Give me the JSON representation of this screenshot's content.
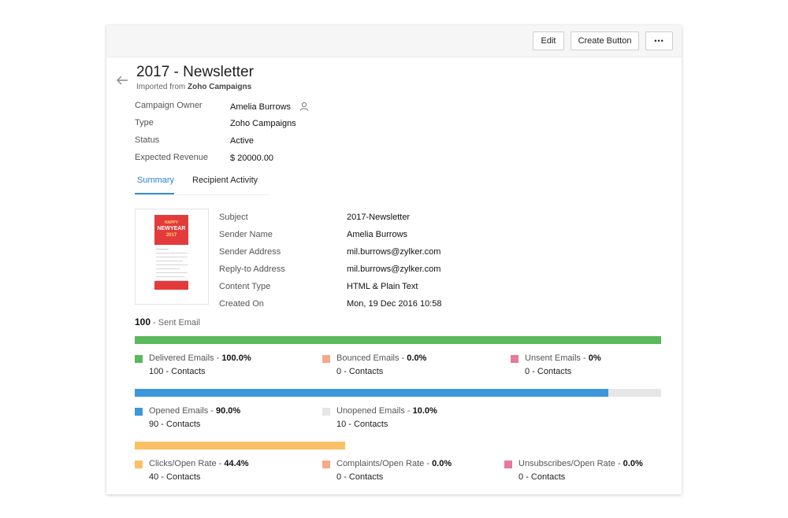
{
  "toolbar": {
    "edit_label": "Edit",
    "create_label": "Create Button",
    "more_label": "•••"
  },
  "header": {
    "title": "2017 - Newsletter",
    "subtitle_prefix": "Imported from ",
    "subtitle_source": "Zoho Campaigns"
  },
  "fields": [
    {
      "label": "Campaign Owner",
      "value": "Amelia Burrows"
    },
    {
      "label": "Type",
      "value": "Zoho Campaigns"
    },
    {
      "label": "Status",
      "value": "Active"
    },
    {
      "label": "Expected Revenue",
      "value": "$ 20000.00"
    }
  ],
  "tabs": [
    {
      "label": "Summary",
      "active": true
    },
    {
      "label": "Recipient Activity",
      "active": false
    }
  ],
  "thumbnail": {
    "banner_line1": "HAPPY",
    "banner_line2": "NEWYEAR",
    "banner_line3": "2017"
  },
  "details": [
    {
      "label": "Subject",
      "value": "2017-Newsletter"
    },
    {
      "label": "Sender Name",
      "value": "Amelia Burrows"
    },
    {
      "label": "Sender Address",
      "value": "mil.burrows@zylker.com"
    },
    {
      "label": "Reply-to Address",
      "value": "mil.burrows@zylker.com"
    },
    {
      "label": "Content Type",
      "value": "HTML & Plain Text"
    },
    {
      "label": "Created On",
      "value": "Mon, 19 Dec 2016 10:58"
    }
  ],
  "sent": {
    "count": "100",
    "label": " - Sent Email"
  },
  "bars": [
    {
      "fill_fraction": 1.0,
      "fill_color": "#5cb85c",
      "legends": [
        {
          "name": "Delivered Emails - ",
          "pct": "100.0%",
          "contacts": "100 - Contacts",
          "color": "#5cb85c"
        },
        {
          "name": "Bounced Emails - ",
          "pct": "0.0%",
          "contacts": "0 - Contacts",
          "color": "#f4a98a"
        },
        {
          "name": "Unsent Emails - ",
          "pct": "0%",
          "contacts": "0 - Contacts",
          "color": "#e57a9a"
        }
      ]
    },
    {
      "fill_fraction": 0.9,
      "fill_color": "#3d97db",
      "legends": [
        {
          "name": "Opened Emails - ",
          "pct": "90.0%",
          "contacts": "90 - Contacts",
          "color": "#3d97db"
        },
        {
          "name": "Unopened Emails - ",
          "pct": "10.0%",
          "contacts": "10 - Contacts",
          "color": "#e6e6e6"
        }
      ]
    },
    {
      "fill_fraction": 0.4,
      "fill_color": "#f9c065",
      "legends": [
        {
          "name": "Clicks/Open Rate - ",
          "pct": "44.4%",
          "contacts": "40 - Contacts",
          "color": "#f9c065"
        },
        {
          "name": "Complaints/Open Rate - ",
          "pct": "0.0%",
          "contacts": "0 - Contacts",
          "color": "#f4a98a"
        },
        {
          "name": "Unsubscribes/Open Rate - ",
          "pct": "0.0%",
          "contacts": "0 - Contacts",
          "color": "#e57a9a"
        }
      ]
    }
  ],
  "icons": {
    "back": "arrow-left-icon",
    "owner": "user-icon"
  }
}
